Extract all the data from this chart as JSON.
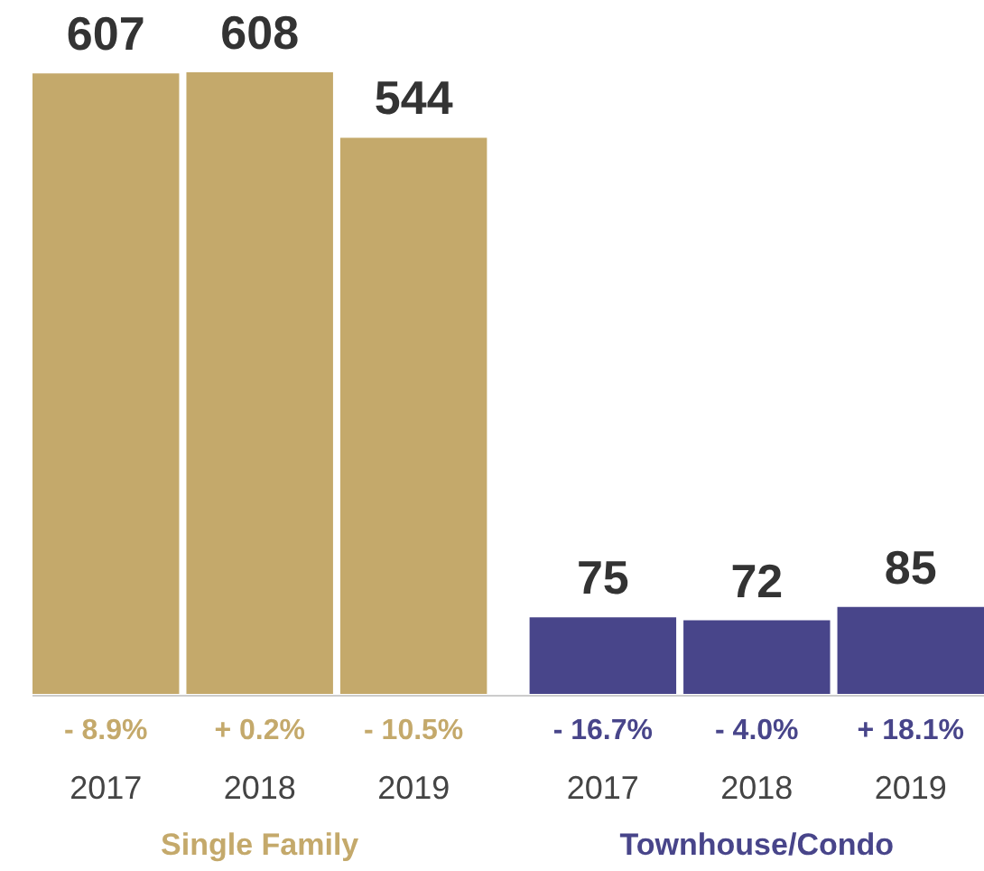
{
  "chart_data": {
    "type": "bar",
    "categories": [
      "2017",
      "2018",
      "2019",
      "2017",
      "2018",
      "2019"
    ],
    "series": [
      {
        "name": "Single Family",
        "color": "#c4a96b",
        "values": [
          607,
          608,
          544,
          null,
          null,
          null
        ]
      },
      {
        "name": "Townhouse/Condo",
        "color": "#48458a",
        "values": [
          null,
          null,
          null,
          75,
          72,
          85
        ]
      }
    ],
    "data_labels": true,
    "annotations": [
      "- 8.9%",
      "+ 0.2%",
      "- 10.5%",
      "- 16.7%",
      "- 4.0%",
      "+ 18.1%"
    ]
  }
}
